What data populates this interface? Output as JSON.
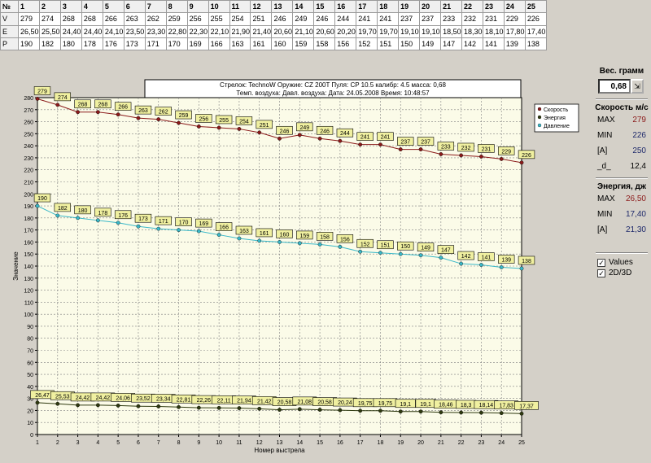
{
  "table": {
    "header_label": "№",
    "numbers": [
      "1",
      "2",
      "3",
      "4",
      "5",
      "6",
      "7",
      "8",
      "9",
      "10",
      "11",
      "12",
      "13",
      "14",
      "15",
      "16",
      "17",
      "18",
      "19",
      "20",
      "21",
      "22",
      "23",
      "24",
      "25"
    ],
    "rows": [
      {
        "label": "V",
        "values": [
          "279",
          "274",
          "268",
          "268",
          "266",
          "263",
          "262",
          "259",
          "256",
          "255",
          "254",
          "251",
          "246",
          "249",
          "246",
          "244",
          "241",
          "241",
          "237",
          "237",
          "233",
          "232",
          "231",
          "229",
          "226"
        ]
      },
      {
        "label": "E",
        "values": [
          "26,50",
          "25,50",
          "24,40",
          "24,40",
          "24,10",
          "23,50",
          "23,30",
          "22,80",
          "22,30",
          "22,10",
          "21,90",
          "21,40",
          "20,60",
          "21,10",
          "20,60",
          "20,20",
          "19,70",
          "19,70",
          "19,10",
          "19,10",
          "18,50",
          "18,30",
          "18,10",
          "17,80",
          "17,40"
        ]
      },
      {
        "label": "P",
        "values": [
          "190",
          "182",
          "180",
          "178",
          "176",
          "173",
          "171",
          "170",
          "169",
          "166",
          "163",
          "161",
          "160",
          "159",
          "158",
          "156",
          "152",
          "151",
          "150",
          "149",
          "147",
          "142",
          "141",
          "139",
          "138"
        ]
      }
    ]
  },
  "chart_header": {
    "line1": "Стрелок: TechnoW   Оружие: CZ 200T   Пуля: CP 10.5  калибр: 4.5  масса: 0,68",
    "line2": "Темп. воздуха:    Давл. воздуха:    Дата: 24.05.2008   Время: 10:48:57"
  },
  "chart_data": {
    "type": "line",
    "x": [
      1,
      2,
      3,
      4,
      5,
      6,
      7,
      8,
      9,
      10,
      11,
      12,
      13,
      14,
      15,
      16,
      17,
      18,
      19,
      20,
      21,
      22,
      23,
      24,
      25
    ],
    "xlabel": "Номер выстрела",
    "ylabel": "Значение",
    "ylim": [
      0,
      280
    ],
    "ytick_step": 10,
    "grid": true,
    "legend_position": "top-right",
    "series": [
      {
        "name": "Скорость",
        "color": "#8b1a1a",
        "values": [
          279,
          274,
          268,
          268,
          266,
          263,
          262,
          259,
          256,
          255,
          254,
          251,
          246,
          249,
          246,
          244,
          241,
          241,
          237,
          237,
          233,
          232,
          231,
          229,
          226
        ],
        "labels": [
          "279",
          "274",
          "268",
          "268",
          "266",
          "263",
          "262",
          "259",
          "256",
          "255",
          "254",
          "251",
          "246",
          "249",
          "246",
          "244",
          "241",
          "241",
          "237",
          "237",
          "233",
          "232",
          "231",
          "229",
          "226"
        ]
      },
      {
        "name": "Энергия",
        "color": "#2f3a10",
        "values": [
          26.47,
          25.53,
          24.42,
          24.42,
          24.06,
          23.52,
          23.34,
          22.81,
          22.26,
          22.11,
          21.94,
          21.42,
          20.58,
          21.08,
          20.58,
          20.24,
          19.75,
          19.75,
          19.1,
          19.1,
          18.46,
          18.3,
          18.14,
          17.83,
          17.37
        ],
        "labels": [
          "26,47",
          "25,53",
          "24,42",
          "24,42",
          "24,06",
          "23,52",
          "23,34",
          "22,81",
          "22,26",
          "22,11",
          "21,94",
          "21,42",
          "20,58",
          "21,08",
          "20,58",
          "20,24",
          "19,75",
          "19,75",
          "19,1",
          "19,1",
          "18,46",
          "18,3",
          "18,14",
          "17,83",
          "17,37"
        ]
      },
      {
        "name": "Давление",
        "color": "#3ab8c8",
        "values": [
          190,
          182,
          180,
          178,
          176,
          173,
          171,
          170,
          169,
          166,
          163,
          161,
          160,
          159,
          158,
          156,
          152,
          151,
          150,
          149,
          147,
          142,
          141,
          139,
          138
        ],
        "labels": [
          "190",
          "182",
          "180",
          "178",
          "176",
          "173",
          "171",
          "170",
          "169",
          "166",
          "163",
          "161",
          "160",
          "159",
          "158",
          "156",
          "152",
          "151",
          "150",
          "149",
          "147",
          "142",
          "141",
          "139",
          "138"
        ]
      }
    ]
  },
  "panel": {
    "weight_title": "Вес. грамм",
    "weight_value": "0,68",
    "speed_title": "Скорость м/с",
    "speed_max_label": "MAX",
    "speed_max": "279",
    "speed_min_label": "MIN",
    "speed_min": "226",
    "speed_avg_label": "[A]",
    "speed_avg": "250",
    "speed_d_label": "_d_",
    "speed_d": "12,4",
    "energy_title": "Энергия, дж",
    "energy_max_label": "MAX",
    "energy_max": "26,50",
    "energy_min_label": "MIN",
    "energy_min": "17,40",
    "energy_avg_label": "[A]",
    "energy_avg": "21,30",
    "check_values": "Values",
    "check_3d": "2D/3D"
  },
  "colors": {
    "plot_bg": "#fbfbe8",
    "label_bg": "#f0f0a0",
    "grid": "#808080"
  }
}
